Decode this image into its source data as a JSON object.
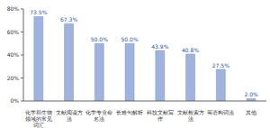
{
  "chart_data": {
    "type": "bar",
    "categories": [
      "化学和生物领域的常见词汇",
      "文献阅读方法",
      "化学专业命名法",
      "长难句解析",
      "科技文献写作",
      "文献检索方法",
      "英语构词法",
      "其他"
    ],
    "values": [
      73.5,
      67.3,
      50.0,
      50.0,
      43.9,
      40.8,
      27.5,
      2.0
    ],
    "value_labels": [
      "73.5%",
      "67.3%",
      "50.0%",
      "50.0%",
      "43.9%",
      "40.8%",
      "27.5%",
      "2.0%"
    ],
    "data_labels": true,
    "color": "#9fb3de",
    "ylim": [
      0,
      80
    ],
    "yticks": [
      {
        "value": 0,
        "label": "0%"
      },
      {
        "value": 20,
        "label": "20%"
      },
      {
        "value": 40,
        "label": "40%"
      },
      {
        "value": 60,
        "label": "60%"
      },
      {
        "value": 80,
        "label": "80%"
      }
    ],
    "grid": false
  }
}
